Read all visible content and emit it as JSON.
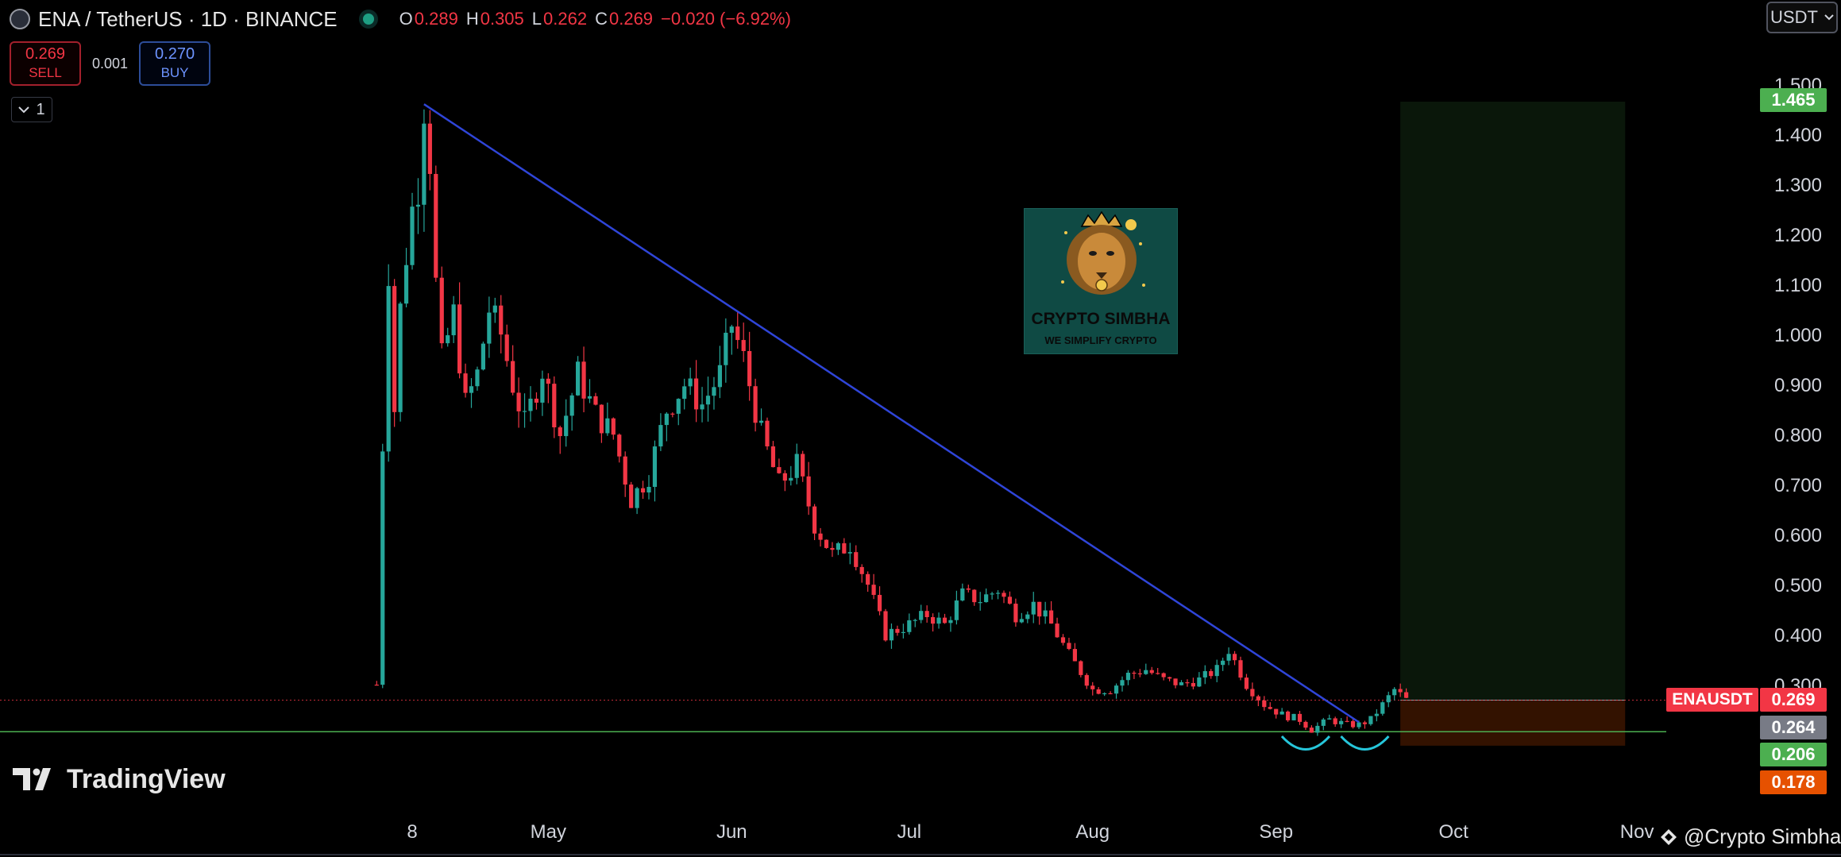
{
  "header": {
    "symbol_line": "ENA / TetherUS · 1D · BINANCE",
    "ohlc": [
      {
        "key": "O",
        "value": "0.289"
      },
      {
        "key": "H",
        "value": "0.305"
      },
      {
        "key": "L",
        "value": "0.262"
      },
      {
        "key": "C",
        "value": "0.269"
      }
    ],
    "change": "−0.020 (−6.92%)"
  },
  "trade": {
    "sell_price": "0.269",
    "sell_label": "SELL",
    "spread": "0.001",
    "buy_price": "0.270",
    "buy_label": "BUY"
  },
  "indicator_toggle": {
    "count": "1"
  },
  "currency": {
    "label": "USDT"
  },
  "watermark": {
    "title": "CRYPTO SIMBHA",
    "subtitle": "WE SIMPLIFY CRYPTO"
  },
  "branding": {
    "logo_text": "TradingView",
    "credit": "@Crypto Simbha"
  },
  "colors": {
    "up": "#26a69a",
    "down": "#f23645",
    "trendline": "#2f45d8",
    "background": "#000000"
  },
  "chart_data": {
    "type": "candlestick",
    "symbol": "ENAUSDT",
    "timeframe": "1D",
    "x_tick_labels": [
      "8",
      "May",
      "Jun",
      "Jul",
      "Aug",
      "Sep",
      "Oct",
      "Nov"
    ],
    "y_tick_labels": [
      "0.300",
      "0.400",
      "0.500",
      "0.600",
      "0.700",
      "0.800",
      "0.900",
      "1.000",
      "1.100",
      "1.200",
      "1.300",
      "1.400",
      "1.500"
    ],
    "y_range": [
      0.15,
      1.55
    ],
    "grid": false,
    "price_labels": [
      {
        "label": "ENAUSDT",
        "value": "0.269",
        "color": "#f23645"
      },
      {
        "value": "1.465",
        "color": "#4caf50"
      },
      {
        "value": "0.264",
        "color": "#787b86"
      },
      {
        "value": "0.206",
        "color": "#4caf50"
      },
      {
        "value": "0.178",
        "color": "#e65100"
      }
    ],
    "close_path": [
      [
        "2024-04-02",
        0.3
      ],
      [
        "2024-04-03",
        0.78
      ],
      [
        "2024-04-04",
        1.13
      ],
      [
        "2024-04-05",
        0.85
      ],
      [
        "2024-04-06",
        1.05
      ],
      [
        "2024-04-07",
        1.16
      ],
      [
        "2024-04-08",
        1.25
      ],
      [
        "2024-04-09",
        1.3
      ],
      [
        "2024-04-10",
        1.46
      ],
      [
        "2024-04-11",
        1.35
      ],
      [
        "2024-04-12",
        1.1
      ],
      [
        "2024-04-13",
        0.95
      ],
      [
        "2024-04-15",
        1.04
      ],
      [
        "2024-04-17",
        0.86
      ],
      [
        "2024-04-19",
        0.92
      ],
      [
        "2024-04-21",
        1.05
      ],
      [
        "2024-04-23",
        1.0
      ],
      [
        "2024-04-25",
        0.9
      ],
      [
        "2024-04-27",
        0.82
      ],
      [
        "2024-04-30",
        0.93
      ],
      [
        "2024-05-03",
        0.8
      ],
      [
        "2024-05-06",
        0.92
      ],
      [
        "2024-05-09",
        0.84
      ],
      [
        "2024-05-12",
        0.8
      ],
      [
        "2024-05-15",
        0.67
      ],
      [
        "2024-05-18",
        0.72
      ],
      [
        "2024-05-21",
        0.85
      ],
      [
        "2024-05-24",
        0.9
      ],
      [
        "2024-05-27",
        0.86
      ],
      [
        "2024-05-30",
        0.92
      ],
      [
        "2024-06-01",
        1.02
      ],
      [
        "2024-06-03",
        0.95
      ],
      [
        "2024-06-06",
        0.8
      ],
      [
        "2024-06-09",
        0.7
      ],
      [
        "2024-06-12",
        0.74
      ],
      [
        "2024-06-15",
        0.62
      ],
      [
        "2024-06-18",
        0.56
      ],
      [
        "2024-06-21",
        0.58
      ],
      [
        "2024-06-24",
        0.5
      ],
      [
        "2024-06-27",
        0.4
      ],
      [
        "2024-07-01",
        0.42
      ],
      [
        "2024-07-04",
        0.44
      ],
      [
        "2024-07-07",
        0.42
      ],
      [
        "2024-07-10",
        0.48
      ],
      [
        "2024-07-13",
        0.47
      ],
      [
        "2024-07-16",
        0.49
      ],
      [
        "2024-07-19",
        0.44
      ],
      [
        "2024-07-22",
        0.46
      ],
      [
        "2024-07-25",
        0.42
      ],
      [
        "2024-07-28",
        0.36
      ],
      [
        "2024-08-01",
        0.29
      ],
      [
        "2024-08-04",
        0.29
      ],
      [
        "2024-08-07",
        0.32
      ],
      [
        "2024-08-10",
        0.33
      ],
      [
        "2024-08-13",
        0.31
      ],
      [
        "2024-08-16",
        0.3
      ],
      [
        "2024-08-19",
        0.31
      ],
      [
        "2024-08-22",
        0.33
      ],
      [
        "2024-08-24",
        0.37
      ],
      [
        "2024-08-27",
        0.3
      ],
      [
        "2024-08-30",
        0.26
      ],
      [
        "2024-09-02",
        0.24
      ],
      [
        "2024-09-05",
        0.23
      ],
      [
        "2024-09-07",
        0.21
      ],
      [
        "2024-09-10",
        0.23
      ],
      [
        "2024-09-13",
        0.22
      ],
      [
        "2024-09-15",
        0.22
      ],
      [
        "2024-09-17",
        0.23
      ],
      [
        "2024-09-19",
        0.26
      ],
      [
        "2024-09-21",
        0.29
      ],
      [
        "2024-09-23",
        0.27
      ]
    ],
    "trendline": {
      "from": [
        "2024-04-10",
        1.46
      ],
      "to": [
        "2024-09-15",
        0.225
      ]
    },
    "horizontal_lines": [
      {
        "value": 0.269,
        "style": "dotted",
        "color": "#f23645"
      },
      {
        "value": 0.206,
        "style": "solid",
        "color": "#4caf50"
      }
    ],
    "position_tool": {
      "entry": 0.269,
      "target": 1.465,
      "stop": 0.178,
      "start": "2024-09-22",
      "end": "2024-10-30"
    },
    "double_bottom_arcs": [
      "2024-09-06",
      "2024-09-16"
    ]
  }
}
